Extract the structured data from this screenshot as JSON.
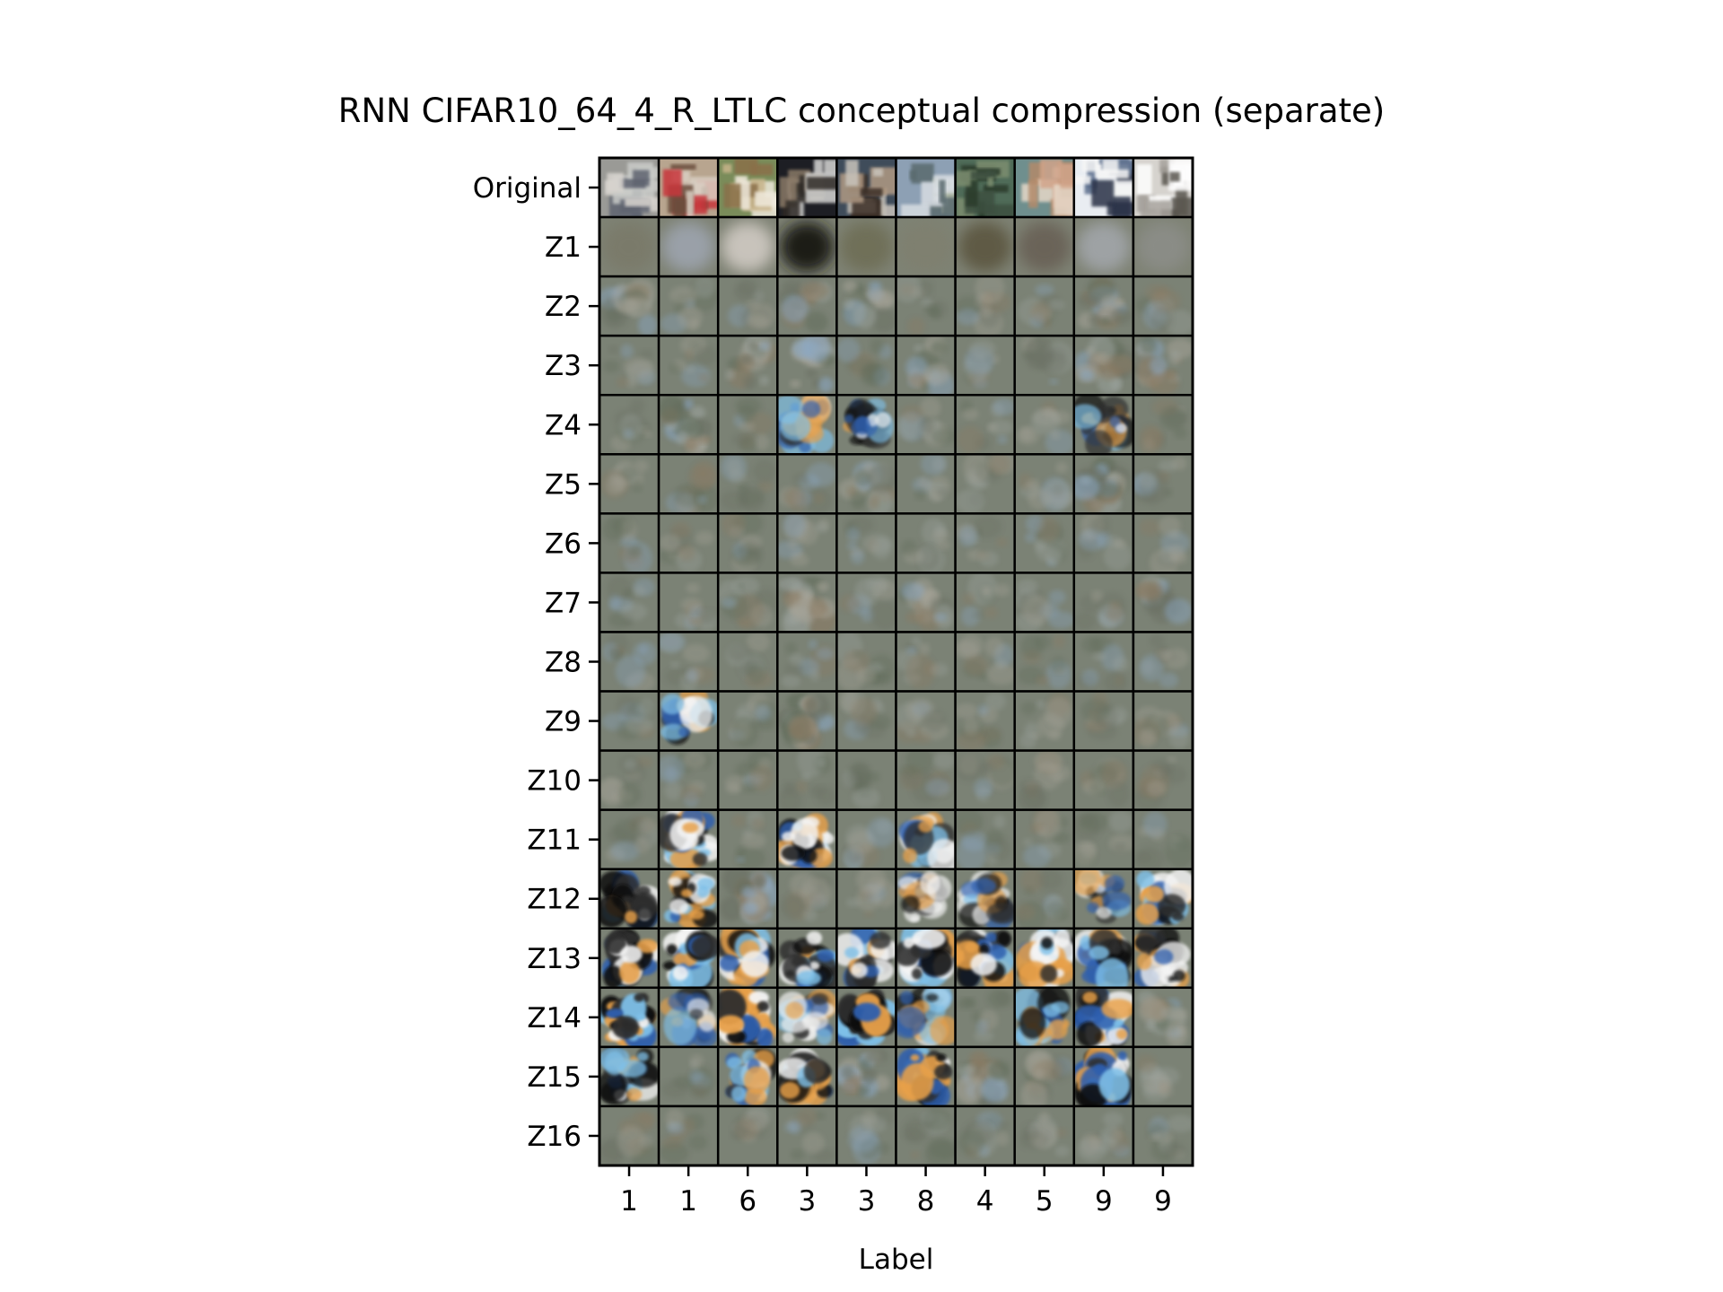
{
  "chart_data": {
    "type": "heatmap",
    "title": "RNN CIFAR10_64_4_R_LTLC conceptual compression (separate)",
    "xlabel": "Label",
    "ylabel": "",
    "row_labels": [
      "Original",
      "Z1",
      "Z2",
      "Z3",
      "Z4",
      "Z5",
      "Z6",
      "Z7",
      "Z8",
      "Z9",
      "Z10",
      "Z11",
      "Z12",
      "Z13",
      "Z14",
      "Z15",
      "Z16"
    ],
    "column_labels": [
      "1",
      "1",
      "6",
      "3",
      "3",
      "8",
      "4",
      "5",
      "9",
      "9"
    ],
    "grid": false,
    "cell_images": "image thumbnails: original CIFAR10 samples in first row, reconstructions at increasing latent stages in following rows"
  },
  "colors": {
    "frame": "#000000",
    "reconstruction_gray": "#7b8275",
    "sky_blue": "#8ba8c4",
    "warm_orange": "#e7a04a",
    "deep_blue": "#2d5fae"
  }
}
